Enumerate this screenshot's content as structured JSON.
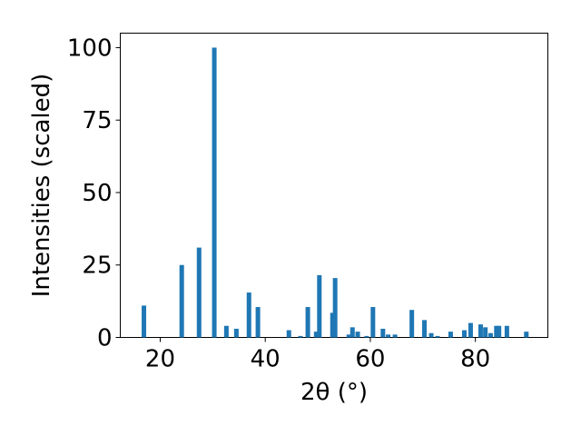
{
  "chart_data": {
    "type": "bar",
    "xlabel": "2θ (°)",
    "ylabel": "Intensities (scaled)",
    "x": [
      16.9,
      24.1,
      27.4,
      30.3,
      32.6,
      34.5,
      36.9,
      38.6,
      44.5,
      46.7,
      48.1,
      49.7,
      50.3,
      52.8,
      53.3,
      55.9,
      56.6,
      57.6,
      59.3,
      60.5,
      62.4,
      63.4,
      64.7,
      67.9,
      70.3,
      71.6,
      72.8,
      75.3,
      77.9,
      79.1,
      81.0,
      81.9,
      82.9,
      84.0,
      84.5,
      86.0,
      89.7
    ],
    "values": [
      11,
      25,
      31,
      100,
      4,
      3,
      15.5,
      10.5,
      2.5,
      0.5,
      10.5,
      2,
      21.5,
      8.5,
      20.5,
      1,
      3.5,
      2,
      0.5,
      10.5,
      3,
      1,
      1,
      9.5,
      6,
      1.5,
      0.5,
      2,
      2.5,
      5,
      4.5,
      3.5,
      1.5,
      4,
      4,
      4,
      2
    ],
    "color": "#1f77b4",
    "xlim": [
      12.4,
      93.8
    ],
    "xticks": [
      20,
      40,
      60,
      80
    ],
    "ylim": [
      0,
      105
    ],
    "yticks": [
      0,
      25,
      50,
      75,
      100
    ]
  }
}
